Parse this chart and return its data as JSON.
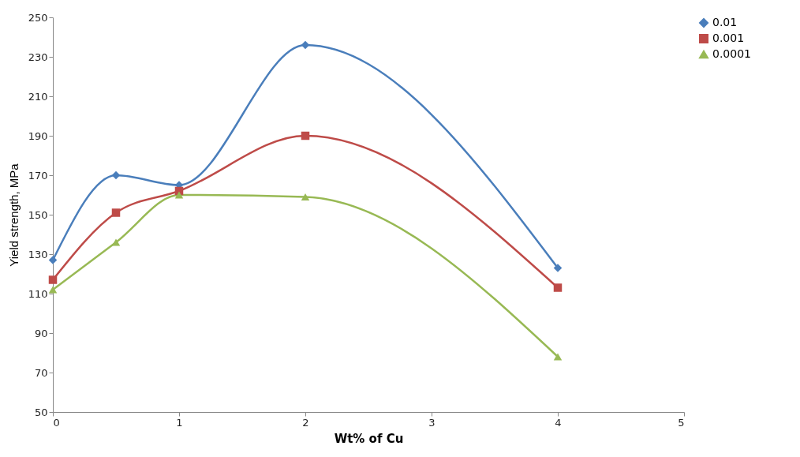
{
  "chart_data": {
    "type": "line",
    "xlabel": "Wt% of Cu",
    "ylabel": "Yield strength, MPa",
    "x": [
      0,
      0.5,
      1,
      2,
      4
    ],
    "series": [
      {
        "name": "0.01",
        "color": "#4a7ebb",
        "marker": "diamond",
        "values": [
          127,
          170,
          165,
          236,
          123
        ]
      },
      {
        "name": "0.001",
        "color": "#be4b48",
        "marker": "square",
        "values": [
          117,
          151,
          162,
          190,
          113
        ]
      },
      {
        "name": "0.0001",
        "color": "#98b954",
        "marker": "triangle",
        "values": [
          112,
          136,
          160,
          159,
          78
        ]
      }
    ],
    "xlim": [
      0,
      5
    ],
    "xticks": [
      0,
      1,
      2,
      3,
      4,
      5
    ],
    "ylim": [
      50,
      250
    ],
    "yticks": [
      50,
      70,
      90,
      110,
      130,
      150,
      170,
      190,
      210,
      230,
      250
    ],
    "grid": false,
    "legend": "right",
    "line_style": "solid"
  }
}
